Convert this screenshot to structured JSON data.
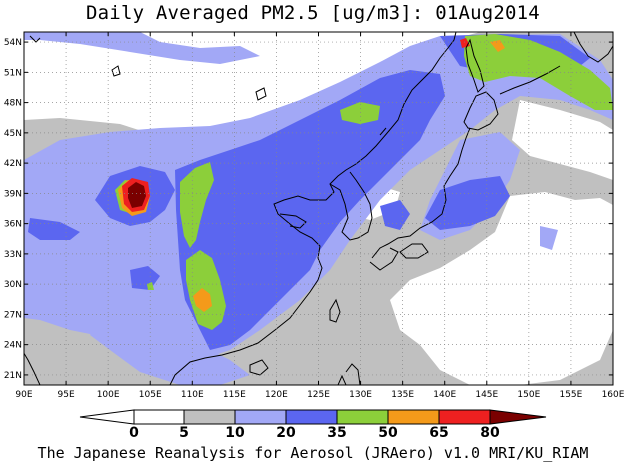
{
  "title": "Daily Averaged PM2.5 [ug/m3]: 01Aug2014",
  "credit": "The Japanese Reanalysis for Aerosol (JRAero) v1.0 MRI/KU_RIAM",
  "map": {
    "lon_range": [
      90,
      160
    ],
    "lat_range": [
      20,
      55
    ],
    "lat_ticks": [
      "54N",
      "51N",
      "48N",
      "45N",
      "42N",
      "39N",
      "36N",
      "33N",
      "30N",
      "27N",
      "24N",
      "21N"
    ],
    "lon_ticks": [
      "90E",
      "95E",
      "100E",
      "105E",
      "110E",
      "115E",
      "120E",
      "125E",
      "130E",
      "135E",
      "140E",
      "145E",
      "150E",
      "155E",
      "160E"
    ],
    "gridlines": "dotted"
  },
  "colorbar": {
    "labels": [
      "0",
      "5",
      "10",
      "20",
      "35",
      "50",
      "65",
      "80"
    ],
    "colors": [
      "#ffffff",
      "#c0c0c0",
      "#a2a8f6",
      "#5b66f0",
      "#8ccf3a",
      "#f49a1a",
      "#ee2020",
      "#7a0000"
    ]
  }
}
